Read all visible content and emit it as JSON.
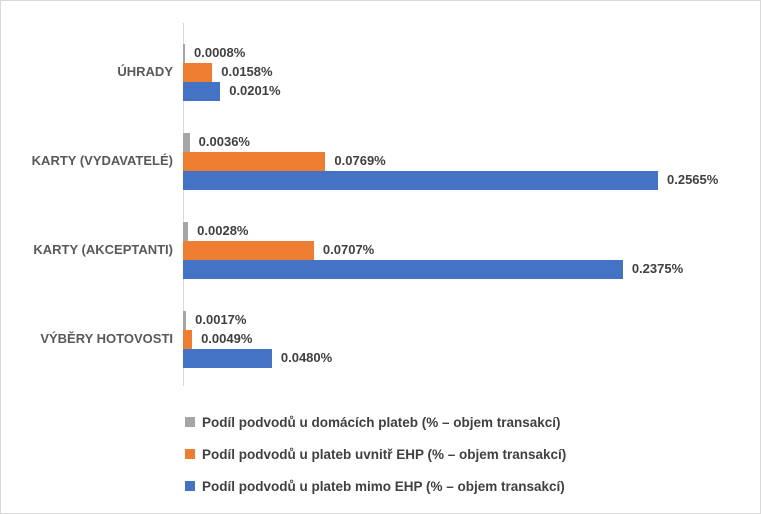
{
  "chart_data": {
    "type": "bar",
    "orientation": "horizontal",
    "title": "",
    "xlabel": "",
    "ylabel": "",
    "grid": false,
    "legend_position": "bottom-left",
    "value_suffix": "%",
    "xlim": [
      0,
      0.2565
    ],
    "categories": [
      "ÚHRADY",
      "KARTY (VYDAVATELÉ)",
      "KARTY (AKCEPTANTI)",
      "VÝBĚRY HOTOVOSTI"
    ],
    "series": [
      {
        "name": "Podíl podvodů u domácích plateb (% – objem transakcí)",
        "color": "#A5A5A5",
        "values": [
          0.0008,
          0.0036,
          0.0028,
          0.0017
        ],
        "labels": [
          "0.0008%",
          "0.0036%",
          "0.0028%",
          "0.0017%"
        ]
      },
      {
        "name": "Podíl podvodů u plateb uvnitř EHP (% – objem transakcí)",
        "color": "#ED7D31",
        "values": [
          0.0158,
          0.0769,
          0.0707,
          0.0049
        ],
        "labels": [
          "0.0158%",
          "0.0769%",
          "0.0707%",
          "0.0049%"
        ]
      },
      {
        "name": "Podíl podvodů u plateb mimo EHP (% – objem transakcí)",
        "color": "#4472C4",
        "values": [
          0.0201,
          0.2565,
          0.2375,
          0.048
        ],
        "labels": [
          "0.0201%",
          "0.2565%",
          "0.2375%",
          "0.0480%"
        ]
      }
    ],
    "colors": {
      "text": "#404040",
      "category_text": "#595959",
      "axis": "#D9D9D9",
      "border": "#D9D9D9"
    }
  }
}
